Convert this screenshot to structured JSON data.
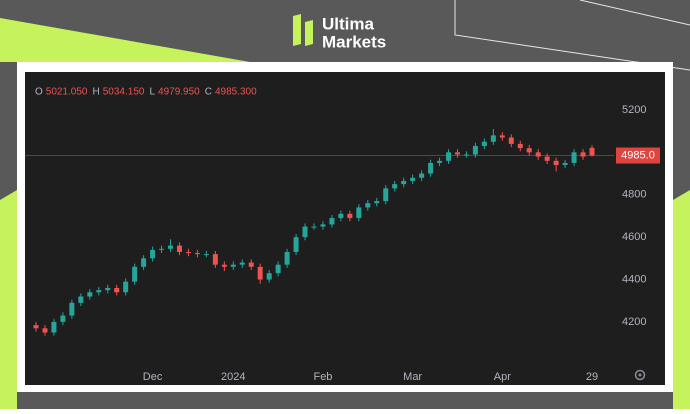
{
  "brand": [
    "Ultima",
    "Markets"
  ],
  "chart_data": {
    "type": "candlestick",
    "header": [
      {
        "letter": "O",
        "label": "5021.050"
      },
      {
        "letter": "H",
        "label": "5034.150"
      },
      {
        "letter": "L",
        "label": "4979.950"
      },
      {
        "letter": "C",
        "label": "4985.300"
      }
    ],
    "categories": [
      null,
      null,
      null,
      null,
      null,
      null,
      null,
      null,
      null,
      null,
      null,
      null,
      null,
      "Dec",
      null,
      null,
      null,
      null,
      null,
      null,
      null,
      null,
      "2024",
      null,
      null,
      null,
      null,
      null,
      null,
      null,
      null,
      null,
      "Feb",
      null,
      null,
      null,
      null,
      null,
      null,
      null,
      null,
      null,
      "Mar",
      null,
      null,
      null,
      null,
      null,
      null,
      null,
      null,
      null,
      "Apr",
      null,
      null,
      null,
      null,
      null,
      null,
      null,
      null,
      null,
      "29"
    ],
    "open": [
      4185,
      4170,
      4150,
      4200,
      4230,
      4290,
      4320,
      4340,
      4350,
      4360,
      4340,
      4390,
      4460,
      4500,
      4540,
      4545,
      4560,
      4530,
      4525,
      4520,
      4520,
      4470,
      4460,
      4470,
      4480,
      4460,
      4400,
      4430,
      4470,
      4530,
      4600,
      4650,
      4650,
      4660,
      4690,
      4710,
      4690,
      4740,
      4760,
      4770,
      4830,
      4850,
      4865,
      4880,
      4900,
      4950,
      4960,
      5000,
      4990,
      4990,
      5030,
      5050,
      5080,
      5070,
      5040,
      5020,
      5000,
      4980,
      4960,
      4940,
      4950,
      5000,
      5021.05
    ],
    "high": [
      4200,
      4185,
      4215,
      4245,
      4305,
      4335,
      4355,
      4365,
      4375,
      4375,
      4405,
      4475,
      4515,
      4555,
      4560,
      4590,
      4575,
      4545,
      4540,
      4535,
      4535,
      4485,
      4485,
      4495,
      4495,
      4475,
      4445,
      4485,
      4545,
      4615,
      4665,
      4665,
      4675,
      4705,
      4725,
      4725,
      4755,
      4775,
      4785,
      4845,
      4865,
      4880,
      4895,
      4915,
      4965,
      4975,
      5015,
      5015,
      5005,
      5045,
      5065,
      5110,
      5095,
      5085,
      5055,
      5035,
      5015,
      4995,
      4975,
      4965,
      5015,
      5015,
      5034.15
    ],
    "low": [
      4155,
      4135,
      4135,
      4185,
      4215,
      4275,
      4305,
      4325,
      4335,
      4325,
      4325,
      4375,
      4445,
      4485,
      4525,
      4530,
      4515,
      4510,
      4505,
      4505,
      4455,
      4440,
      4445,
      4455,
      4445,
      4380,
      4385,
      4415,
      4455,
      4515,
      4585,
      4635,
      4635,
      4645,
      4675,
      4675,
      4675,
      4725,
      4745,
      4755,
      4815,
      4835,
      4850,
      4865,
      4885,
      4935,
      4945,
      4975,
      4975,
      4975,
      5015,
      5035,
      5055,
      5025,
      5005,
      4985,
      4965,
      4945,
      4910,
      4925,
      4935,
      4965,
      4979.95
    ],
    "close": [
      4170,
      4150,
      4200,
      4230,
      4290,
      4320,
      4340,
      4350,
      4360,
      4340,
      4390,
      4460,
      4500,
      4540,
      4545,
      4560,
      4530,
      4525,
      4520,
      4520,
      4470,
      4460,
      4470,
      4480,
      4460,
      4400,
      4430,
      4470,
      4530,
      4600,
      4650,
      4650,
      4660,
      4690,
      4710,
      4690,
      4740,
      4760,
      4770,
      4830,
      4850,
      4865,
      4880,
      4900,
      4950,
      4960,
      5000,
      4990,
      4990,
      5030,
      5050,
      5080,
      5070,
      5040,
      5020,
      5000,
      4980,
      4960,
      4940,
      4950,
      5000,
      4980,
      4985.3
    ],
    "up_color": "#26a69a",
    "down_color": "#ef5350",
    "last_price": {
      "value": 4985.0,
      "label": "4985.0"
    },
    "last_price_color": "#e0443e",
    "ylim": [
      4011,
      5379
    ],
    "yticks": [
      4200,
      4400,
      4600,
      4800,
      5200
    ],
    "grid": false
  }
}
